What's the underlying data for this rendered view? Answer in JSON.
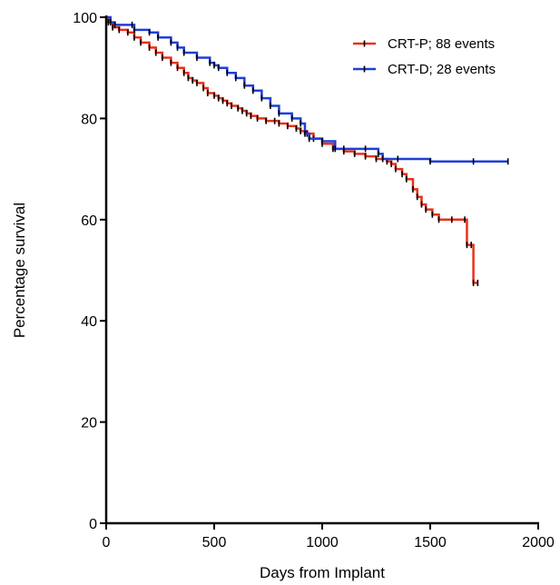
{
  "chart_data": {
    "type": "line",
    "subtype": "kaplan-meier",
    "xlabel": "Days from Implant",
    "ylabel": "Percentage survival",
    "xlim": [
      0,
      2000
    ],
    "ylim": [
      0,
      100
    ],
    "xticks": [
      0,
      500,
      1000,
      1500,
      2000
    ],
    "yticks": [
      0,
      20,
      40,
      60,
      80,
      100
    ],
    "grid": false,
    "legend_position": "top-right",
    "series": [
      {
        "name": "CRT-P; 88 events",
        "color": "#e8311a",
        "censor_color": "#000000",
        "points": [
          [
            0,
            100
          ],
          [
            10,
            99
          ],
          [
            30,
            98
          ],
          [
            60,
            97.5
          ],
          [
            100,
            97
          ],
          [
            130,
            96
          ],
          [
            160,
            95
          ],
          [
            200,
            94
          ],
          [
            230,
            93
          ],
          [
            260,
            92
          ],
          [
            300,
            91
          ],
          [
            330,
            90
          ],
          [
            360,
            89
          ],
          [
            380,
            88
          ],
          [
            400,
            87.5
          ],
          [
            420,
            87
          ],
          [
            450,
            86
          ],
          [
            470,
            85
          ],
          [
            500,
            84.5
          ],
          [
            520,
            84
          ],
          [
            540,
            83.5
          ],
          [
            560,
            83
          ],
          [
            580,
            82.5
          ],
          [
            610,
            82
          ],
          [
            630,
            81.5
          ],
          [
            650,
            81
          ],
          [
            670,
            80.5
          ],
          [
            700,
            80
          ],
          [
            740,
            79.5
          ],
          [
            780,
            79.5
          ],
          [
            800,
            79
          ],
          [
            840,
            78.5
          ],
          [
            880,
            78
          ],
          [
            900,
            77.5
          ],
          [
            930,
            77
          ],
          [
            960,
            76
          ],
          [
            1000,
            75
          ],
          [
            1050,
            74
          ],
          [
            1100,
            73.5
          ],
          [
            1150,
            73
          ],
          [
            1200,
            72.5
          ],
          [
            1250,
            72
          ],
          [
            1300,
            71.5
          ],
          [
            1320,
            71
          ],
          [
            1340,
            70
          ],
          [
            1370,
            69
          ],
          [
            1390,
            68
          ],
          [
            1420,
            66
          ],
          [
            1440,
            64.5
          ],
          [
            1460,
            63
          ],
          [
            1480,
            62
          ],
          [
            1510,
            61
          ],
          [
            1540,
            60
          ],
          [
            1600,
            60
          ],
          [
            1660,
            60
          ],
          [
            1670,
            55
          ],
          [
            1690,
            55
          ],
          [
            1700,
            47.5
          ],
          [
            1720,
            47.5
          ]
        ]
      },
      {
        "name": "CRT-D; 28 events",
        "color": "#1f3fd6",
        "censor_color": "#000000",
        "points": [
          [
            0,
            100
          ],
          [
            20,
            99
          ],
          [
            40,
            98.5
          ],
          [
            120,
            98.5
          ],
          [
            130,
            97.5
          ],
          [
            200,
            97
          ],
          [
            240,
            96
          ],
          [
            300,
            95
          ],
          [
            330,
            94
          ],
          [
            360,
            93
          ],
          [
            420,
            92
          ],
          [
            480,
            91
          ],
          [
            500,
            90.5
          ],
          [
            520,
            90
          ],
          [
            560,
            89
          ],
          [
            600,
            88
          ],
          [
            640,
            86.5
          ],
          [
            680,
            85.5
          ],
          [
            720,
            84
          ],
          [
            760,
            82.5
          ],
          [
            800,
            81
          ],
          [
            860,
            80
          ],
          [
            900,
            79
          ],
          [
            920,
            77
          ],
          [
            940,
            76
          ],
          [
            1000,
            75.5
          ],
          [
            1060,
            74
          ],
          [
            1100,
            74
          ],
          [
            1200,
            74
          ],
          [
            1260,
            73
          ],
          [
            1280,
            72
          ],
          [
            1350,
            72
          ],
          [
            1500,
            71.5
          ],
          [
            1700,
            71.5
          ],
          [
            1860,
            71.5
          ]
        ]
      }
    ]
  }
}
